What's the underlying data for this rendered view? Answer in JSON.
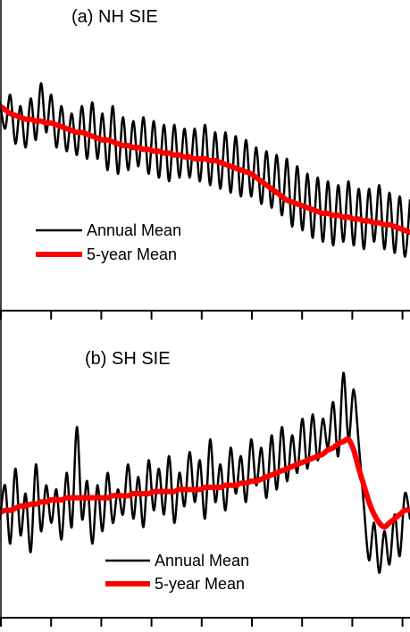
{
  "chart_data": [
    {
      "type": "line",
      "title": "(a) NH SIE",
      "xlabel": "",
      "ylabel": "",
      "x_tick_count": 9,
      "legend": {
        "placement": "bottom-left"
      },
      "series": [
        {
          "name": "Annual Mean",
          "color": "#000000",
          "values": [
            0.86,
            0.72,
            0.9,
            0.64,
            0.84,
            0.62,
            0.88,
            0.66,
            0.96,
            0.7,
            0.9,
            0.62,
            0.84,
            0.6,
            0.8,
            0.58,
            0.84,
            0.56,
            0.86,
            0.56,
            0.8,
            0.5,
            0.84,
            0.48,
            0.78,
            0.5,
            0.76,
            0.52,
            0.78,
            0.48,
            0.76,
            0.46,
            0.74,
            0.44,
            0.74,
            0.46,
            0.72,
            0.46,
            0.72,
            0.44,
            0.74,
            0.42,
            0.7,
            0.4,
            0.7,
            0.38,
            0.68,
            0.36,
            0.66,
            0.36,
            0.62,
            0.32,
            0.6,
            0.3,
            0.58,
            0.26,
            0.56,
            0.2,
            0.52,
            0.18,
            0.48,
            0.14,
            0.46,
            0.12,
            0.44,
            0.1,
            0.42,
            0.12,
            0.44,
            0.1,
            0.4,
            0.08,
            0.4,
            0.12,
            0.42,
            0.08,
            0.38,
            0.06,
            0.36,
            0.04,
            0.34
          ]
        },
        {
          "name": "5-year Mean",
          "color": "#ff0000",
          "values": [
            0.84,
            0.82,
            0.8,
            0.79,
            0.78,
            0.77,
            0.77,
            0.76,
            0.76,
            0.75,
            0.75,
            0.74,
            0.73,
            0.72,
            0.71,
            0.7,
            0.7,
            0.69,
            0.68,
            0.67,
            0.66,
            0.66,
            0.65,
            0.64,
            0.63,
            0.63,
            0.62,
            0.62,
            0.61,
            0.61,
            0.6,
            0.6,
            0.59,
            0.59,
            0.58,
            0.58,
            0.57,
            0.57,
            0.56,
            0.56,
            0.56,
            0.55,
            0.55,
            0.54,
            0.53,
            0.52,
            0.51,
            0.5,
            0.49,
            0.48,
            0.46,
            0.44,
            0.42,
            0.4,
            0.38,
            0.36,
            0.34,
            0.33,
            0.32,
            0.31,
            0.3,
            0.29,
            0.28,
            0.27,
            0.27,
            0.26,
            0.26,
            0.25,
            0.25,
            0.24,
            0.24,
            0.23,
            0.23,
            0.22,
            0.22,
            0.21,
            0.21,
            0.2,
            0.19,
            0.18,
            0.17
          ]
        }
      ]
    },
    {
      "type": "line",
      "title": "(b) SH SIE",
      "xlabel": "",
      "ylabel": "",
      "x_tick_count": 9,
      "legend": {
        "placement": "bottom-right"
      },
      "series": [
        {
          "name": "Annual Mean",
          "color": "#000000",
          "values": [
            0.22,
            0.38,
            0.1,
            0.46,
            0.14,
            0.34,
            0.06,
            0.48,
            0.16,
            0.38,
            0.2,
            0.36,
            0.12,
            0.44,
            0.18,
            0.66,
            0.22,
            0.4,
            0.1,
            0.38,
            0.16,
            0.44,
            0.2,
            0.36,
            0.24,
            0.48,
            0.22,
            0.42,
            0.18,
            0.5,
            0.26,
            0.46,
            0.24,
            0.52,
            0.2,
            0.44,
            0.28,
            0.54,
            0.3,
            0.5,
            0.22,
            0.6,
            0.3,
            0.48,
            0.26,
            0.56,
            0.34,
            0.52,
            0.3,
            0.6,
            0.38,
            0.56,
            0.32,
            0.62,
            0.36,
            0.66,
            0.4,
            0.62,
            0.44,
            0.7,
            0.46,
            0.72,
            0.5,
            0.7,
            0.56,
            0.78,
            0.52,
            0.92,
            0.6,
            0.84,
            0.58,
            0.28,
            0.02,
            0.2,
            -0.04,
            0.16,
            0.0,
            0.24,
            0.04,
            0.34,
            0.22
          ]
        },
        {
          "name": "5-year Mean",
          "color": "#ff0000",
          "values": [
            0.25,
            0.26,
            0.26,
            0.27,
            0.28,
            0.28,
            0.29,
            0.29,
            0.3,
            0.3,
            0.31,
            0.31,
            0.31,
            0.32,
            0.32,
            0.32,
            0.32,
            0.32,
            0.32,
            0.32,
            0.32,
            0.32,
            0.33,
            0.33,
            0.33,
            0.33,
            0.34,
            0.34,
            0.34,
            0.34,
            0.35,
            0.35,
            0.35,
            0.35,
            0.35,
            0.36,
            0.36,
            0.36,
            0.36,
            0.36,
            0.37,
            0.37,
            0.37,
            0.37,
            0.38,
            0.38,
            0.38,
            0.39,
            0.39,
            0.4,
            0.4,
            0.41,
            0.42,
            0.43,
            0.44,
            0.45,
            0.46,
            0.47,
            0.48,
            0.49,
            0.5,
            0.51,
            0.52,
            0.53,
            0.55,
            0.56,
            0.58,
            0.59,
            0.6,
            0.55,
            0.46,
            0.38,
            0.3,
            0.24,
            0.2,
            0.18,
            0.2,
            0.22,
            0.24,
            0.26,
            0.26
          ]
        }
      ]
    }
  ]
}
